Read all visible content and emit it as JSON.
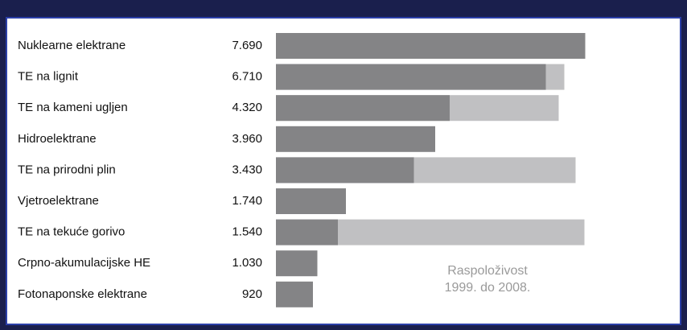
{
  "chart_data": {
    "type": "bar",
    "orientation": "horizontal",
    "categories": [
      "Nuklearne elektrane",
      "TE na lignit",
      "TE na kameni ugljen",
      "Hidroelektrane",
      "TE na prirodni plin",
      "Vjetroelektrane",
      "TE na tekuće gorivo",
      "Crpno-akumulacijske HE",
      "Fotonaponske elektrane"
    ],
    "series": [
      {
        "color": "#c0c0c2",
        "values": [
          null,
          7170,
          7030,
          null,
          7450,
          null,
          7670,
          null,
          null
        ]
      },
      {
        "color": "#848486",
        "values": [
          7690,
          6710,
          4320,
          3960,
          3430,
          1740,
          1540,
          1030,
          920
        ],
        "value_labels": [
          "7.690",
          "6.710",
          "4.320",
          "3.960",
          "3.430",
          "1.740",
          "1.540",
          "1.030",
          "920"
        ]
      }
    ],
    "xlim": [
      0,
      8000
    ],
    "annotation": [
      "Raspoloživost",
      "1999. do 2008."
    ]
  }
}
